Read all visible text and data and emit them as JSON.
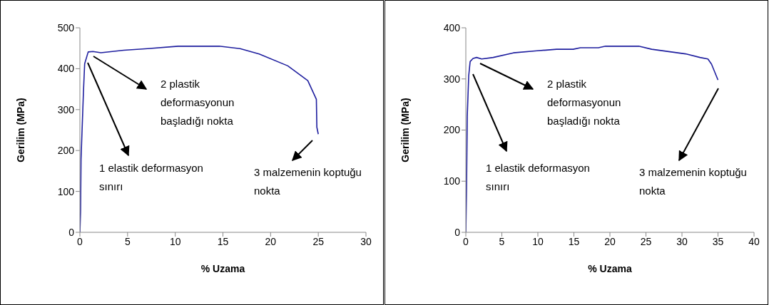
{
  "chart_data": [
    {
      "type": "line",
      "xlabel": "% Uzama",
      "ylabel": "Gerilim (MPa)",
      "xlim": [
        0,
        30
      ],
      "xticks": [
        0,
        5,
        10,
        15,
        20,
        25,
        30
      ],
      "ylim": [
        0,
        500
      ],
      "yticks": [
        0,
        100,
        200,
        300,
        400,
        500
      ],
      "grid": false,
      "legend": false,
      "marker": "none",
      "line_style": "solid",
      "series": [
        {
          "color": "#1f1f9f",
          "x": [
            0,
            0.07,
            0.12,
            0.37,
            0.5,
            0.87,
            1.37,
            2.2,
            4.6,
            7.1,
            10.3,
            14.6,
            16.8,
            18.8,
            21.8,
            23.9,
            24.8,
            24.85,
            25.0
          ],
          "values": [
            0,
            51,
            179,
            342,
            412,
            441,
            442,
            439,
            445,
            449,
            455,
            455,
            449,
            436,
            407,
            371,
            325,
            257,
            240
          ]
        }
      ],
      "annotations": [
        "1 elastik deformasyon sınırı",
        "2 plastik deformasyonun başladığı nokta",
        "3 malzemenin koptuğu nokta"
      ]
    },
    {
      "type": "line",
      "xlabel": "% Uzama",
      "ylabel": "Gerilim (MPa)",
      "xlim": [
        0,
        40
      ],
      "xticks": [
        0,
        5,
        10,
        15,
        20,
        25,
        30,
        35,
        40
      ],
      "ylim": [
        0,
        400
      ],
      "yticks": [
        0,
        100,
        200,
        300,
        400
      ],
      "grid": false,
      "legend": false,
      "marker": "none",
      "line_style": "solid",
      "series": [
        {
          "color": "#1f1f9f",
          "x": [
            0,
            0.1,
            0.2,
            0.4,
            0.6,
            1.0,
            1.5,
            2.2,
            3.8,
            6.6,
            9.9,
            12.6,
            14.9,
            15.9,
            18.4,
            19.4,
            24.0,
            25.8,
            30.5,
            32.5,
            33.6,
            34.1,
            35.0
          ],
          "values": [
            0,
            87,
            227,
            306,
            334,
            340,
            342,
            339,
            342,
            351,
            355,
            358,
            358,
            361,
            361,
            364,
            364,
            358,
            349,
            342,
            339,
            329,
            298
          ]
        }
      ],
      "annotations": [
        "1 elastik deformasyon sınırı",
        "2 plastik deformasyonun başladığı nokta",
        "3 malzemenin koptuğu nokta"
      ]
    }
  ]
}
